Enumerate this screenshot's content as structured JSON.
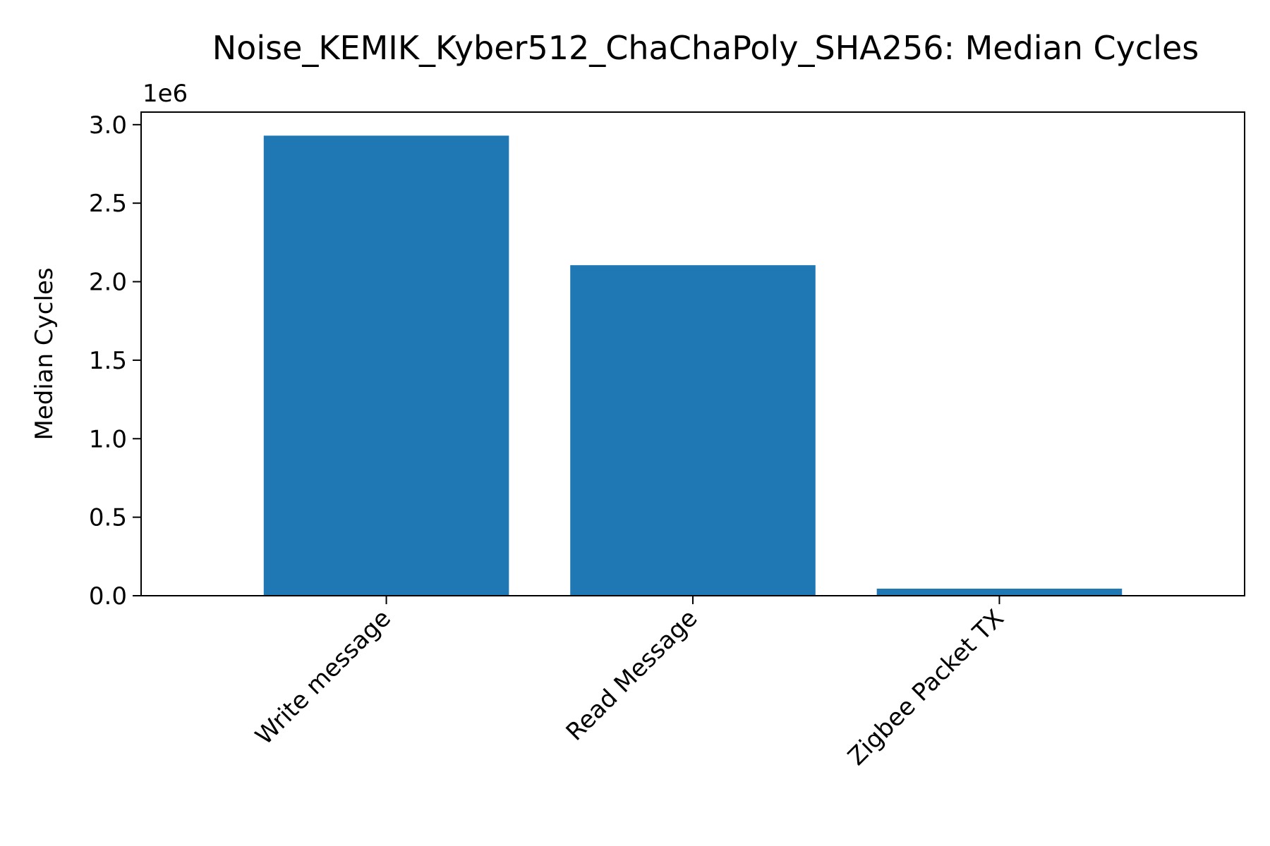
{
  "chart_data": {
    "type": "bar",
    "title": "Noise_KEMIK_Kyber512_ChaChaPoly_SHA256: Median Cycles",
    "xlabel": "",
    "ylabel": "Median Cycles",
    "y_offset_label": "1e6",
    "categories": [
      "Write message",
      "Read Message",
      "Zigbee Packet TX"
    ],
    "values": [
      2930000,
      2105000,
      45000
    ],
    "ylim": [
      0,
      3080000
    ],
    "yticks": [
      0,
      500000,
      1000000,
      1500000,
      2000000,
      2500000,
      3000000
    ],
    "ytick_labels": [
      "0.0",
      "0.5",
      "1.0",
      "1.5",
      "2.0",
      "2.5",
      "3.0"
    ],
    "bar_color": "#1f77b4",
    "grid": false,
    "legend": false
  }
}
